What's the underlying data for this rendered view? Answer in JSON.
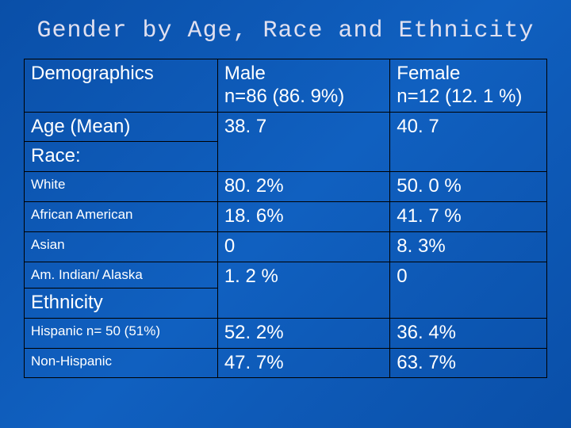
{
  "title": "Gender by Age, Race and Ethnicity",
  "table": {
    "columns": [
      {
        "header": "Demographics",
        "sub": ""
      },
      {
        "header": "Male",
        "sub": "n=86 (86. 9%)"
      },
      {
        "header": "Female",
        "sub": "n=12 (12. 1 %)"
      }
    ],
    "rows": [
      {
        "label": "Age (Mean)",
        "label_small": false,
        "male": "38. 7",
        "female": "40. 7"
      },
      {
        "label": "Race:",
        "label_small": false,
        "male": "",
        "female": ""
      },
      {
        "label": "White",
        "label_small": true,
        "male": "80. 2%",
        "female": "50. 0 %"
      },
      {
        "label": "African American",
        "label_small": true,
        "male": "18. 6%",
        "female": "41. 7 %"
      },
      {
        "label": "Asian",
        "label_small": true,
        "male": "0",
        "female": "8. 3%"
      },
      {
        "label": "Am. Indian/ Alaska",
        "label_small": true,
        "male": "1. 2 %",
        "female": "0"
      },
      {
        "label": "Ethnicity",
        "label_small": false,
        "male": "",
        "female": ""
      },
      {
        "label": "Hispanic  n= 50 (51%)",
        "label_small": true,
        "male": "52. 2%",
        "female": "36. 4%"
      },
      {
        "label": "Non-Hispanic",
        "label_small": true,
        "male": "47. 7%",
        "female": "63. 7%"
      }
    ]
  },
  "colors": {
    "background_top": "#0a4fa8",
    "background_mid": "#1060c0",
    "border": "#000000",
    "text": "#ffffff",
    "title": "#e0e0f0"
  }
}
